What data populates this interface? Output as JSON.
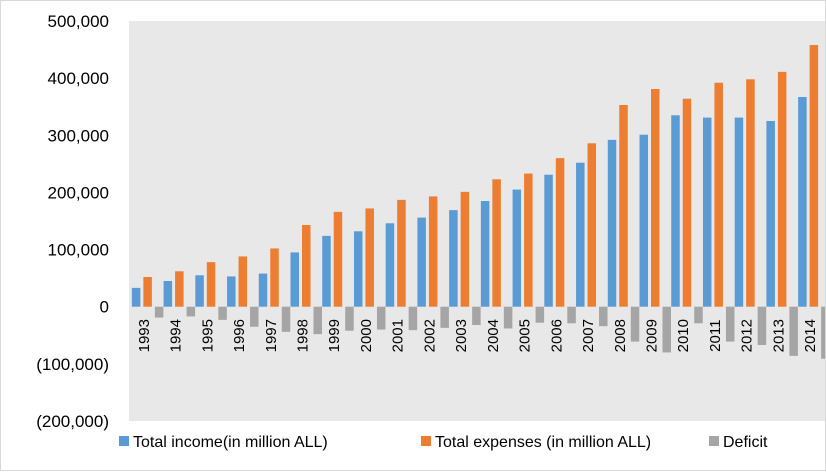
{
  "chart_data": {
    "type": "bar",
    "title": "",
    "xlabel": "",
    "ylabel": "",
    "categories": [
      "1993",
      "1994",
      "1995",
      "1996",
      "1997",
      "1998",
      "1999",
      "2000",
      "2001",
      "2002",
      "2003",
      "2004",
      "2005",
      "2006",
      "2007",
      "2008",
      "2009",
      "2010",
      "2011",
      "2012",
      "2013",
      "2014"
    ],
    "series": [
      {
        "name": "Total income(in million ALL)",
        "color": "#5b9bd5",
        "values": [
          33000,
          45000,
          55000,
          53000,
          58000,
          95000,
          124000,
          132000,
          146000,
          156000,
          169000,
          185000,
          205000,
          231000,
          252000,
          292000,
          301000,
          335000,
          331000,
          331000,
          325000,
          367000
        ]
      },
      {
        "name": "Total expenses (in million ALL)",
        "color": "#ed7d31",
        "values": [
          52000,
          62000,
          78000,
          88000,
          102000,
          143000,
          166000,
          172000,
          187000,
          193000,
          201000,
          223000,
          233000,
          260000,
          286000,
          353000,
          381000,
          364000,
          392000,
          398000,
          411000,
          458000
        ]
      },
      {
        "name": "Deficit",
        "color": "#a5a5a5",
        "values": [
          -19000,
          -17000,
          -23000,
          -35000,
          -44000,
          -48000,
          -42000,
          -40000,
          -41000,
          -37000,
          -32000,
          -38000,
          -28000,
          -29000,
          -34000,
          -61000,
          -80000,
          -29000,
          -61000,
          -67000,
          -86000,
          -91000
        ]
      }
    ],
    "yticks": [
      500000,
      400000,
      300000,
      200000,
      100000,
      0,
      -100000,
      -200000
    ],
    "ytick_labels": [
      "500,000",
      "400,000",
      "300,000",
      "200,000",
      "100,000",
      "0",
      "(100,000)",
      "(200,000)"
    ],
    "ylim": [
      -200000,
      500000
    ],
    "plot_background": "#e8e8e8",
    "legend_position": "bottom"
  }
}
